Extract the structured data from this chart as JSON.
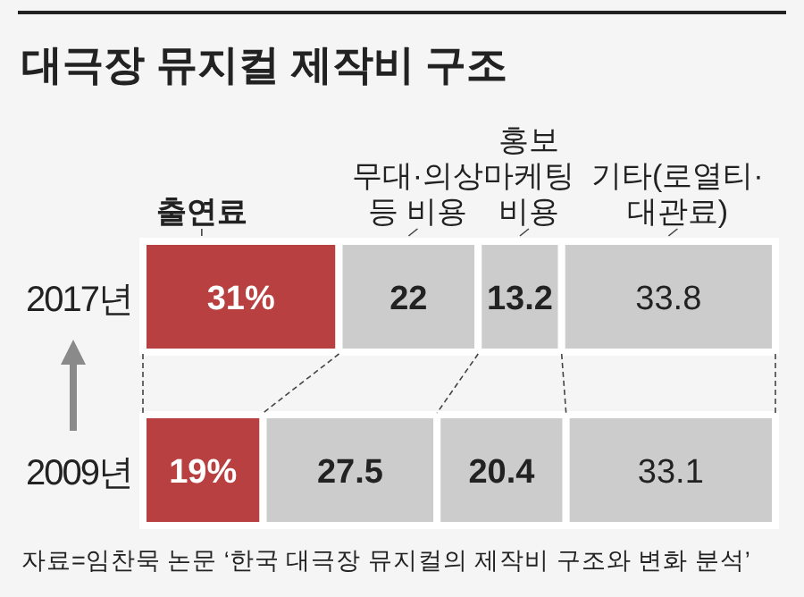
{
  "chart_data": {
    "type": "bar",
    "title": "대극장 뮤지컬 제작비 구조",
    "annotations": [
      "자료=임찬묵 논문 ‘한국 대극장 뮤지컬의 제작비 구조와 변화 분석’"
    ],
    "categories": [
      "2017년",
      "2009년"
    ],
    "stacked": true,
    "orientation": "horizontal",
    "tick_labels": "y",
    "series": [
      {
        "name": "출연료",
        "color": "#b94040",
        "values": [
          31,
          19
        ],
        "value_labels": [
          "31%",
          "19%"
        ]
      },
      {
        "name": "무대·의상 등 비용",
        "color": "#cccccc",
        "values": [
          22,
          27.5
        ],
        "value_labels": [
          "22",
          "27.5"
        ]
      },
      {
        "name": "홍보 마케팅 비용",
        "color": "#cccccc",
        "values": [
          13.2,
          20.4
        ],
        "value_labels": [
          "13.2",
          "20.4"
        ]
      },
      {
        "name": "기타(로열티·대관료)",
        "color": "#cccccc",
        "values": [
          33.8,
          33.1
        ],
        "value_labels": [
          "33.8",
          "33.1"
        ]
      }
    ]
  }
}
